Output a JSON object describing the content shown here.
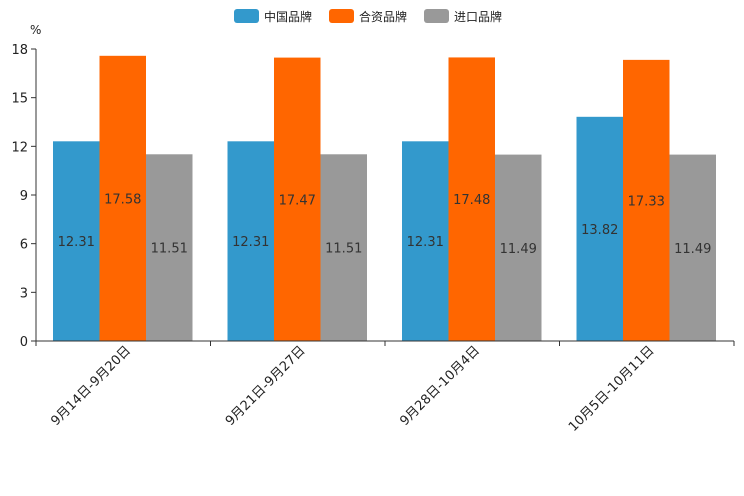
{
  "chart_data": {
    "type": "bar",
    "unit": "%",
    "categories": [
      "9月14日-9月20日",
      "9月21日-9月27日",
      "9月28日-10月4日",
      "10月5日-10月11日"
    ],
    "series": [
      {
        "name": "中国品牌",
        "color": "#3399cc",
        "values": [
          12.31,
          12.31,
          12.31,
          13.82
        ],
        "labels": [
          "12.31",
          "12.31",
          "12.31",
          "13.82"
        ]
      },
      {
        "name": "合资品牌",
        "color": "#ff6600",
        "values": [
          17.58,
          17.47,
          17.48,
          17.33
        ],
        "labels": [
          "17.58",
          "17.47",
          "17.48",
          "17.33"
        ]
      },
      {
        "name": "进口品牌",
        "color": "#999999",
        "values": [
          11.51,
          11.51,
          11.49,
          11.49
        ],
        "labels": [
          "11.51",
          "11.51",
          "11.49",
          "11.49"
        ]
      }
    ],
    "ylim": [
      0,
      18
    ],
    "yticks": [
      0,
      3,
      6,
      9,
      12,
      15,
      18
    ],
    "ytick_labels": [
      "0",
      "3",
      "6",
      "9",
      "12",
      "15",
      "18"
    ],
    "legend_position": "top-center",
    "grid": false
  }
}
